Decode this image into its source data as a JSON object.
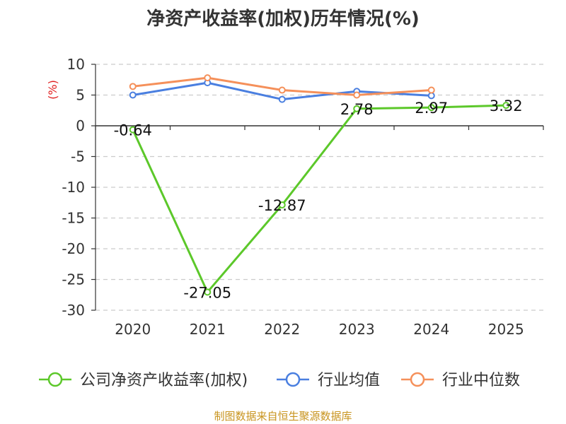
{
  "chart_data": {
    "type": "line",
    "title": "净资产收益率(加权)历年情况(%)",
    "ylabel": "(%)",
    "xlabel": "",
    "categories": [
      "2020",
      "2021",
      "2022",
      "2023",
      "2024",
      "2025"
    ],
    "ylim": [
      -30,
      10
    ],
    "yticks": [
      10,
      5,
      0,
      -5,
      -10,
      -15,
      -20,
      -25,
      -30
    ],
    "grid": true,
    "legend_position": "bottom",
    "series": [
      {
        "name": "公司净资产收益率(加权)",
        "color": "#5cc82a",
        "values": [
          -0.64,
          -27.05,
          -12.87,
          2.78,
          2.97,
          3.32
        ],
        "labels": [
          "-0.64",
          "-27.05",
          "-12.87",
          "2.78",
          "2.97",
          "3.32"
        ]
      },
      {
        "name": "行业均值",
        "color": "#4a7fe0",
        "values": [
          5.0,
          7.0,
          4.3,
          5.6,
          4.9,
          null
        ]
      },
      {
        "name": "行业中位数",
        "color": "#f5905a",
        "values": [
          6.4,
          7.8,
          5.8,
          5.0,
          5.8,
          null
        ]
      }
    ]
  },
  "footer": "制图数据来自恒生聚源数据库"
}
